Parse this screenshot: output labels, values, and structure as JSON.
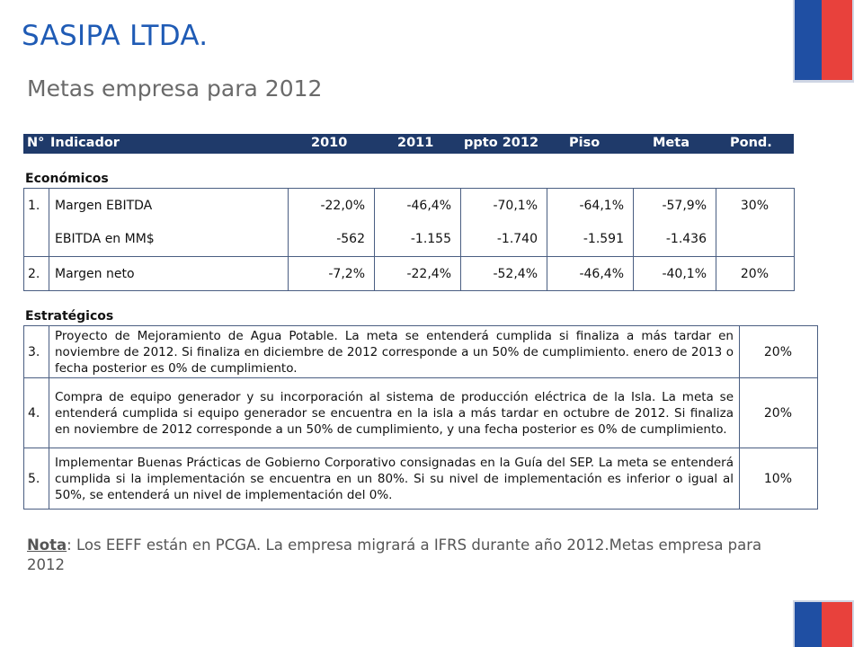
{
  "header": {
    "title": "SASIPA LTDA.",
    "subtitle": "Metas empresa para 2012"
  },
  "table_header": {
    "num": "N°",
    "indicador": "Indicador",
    "y2010": "2010",
    "y2011": "2011",
    "ppto": "ppto 2012",
    "piso": "Piso",
    "meta": "Meta",
    "pond": "Pond."
  },
  "economicos": {
    "label": "Económicos",
    "rows": [
      {
        "idx": "1.",
        "name": "Margen EBITDA",
        "v2010": "-22,0%",
        "v2011": "-46,4%",
        "ppto": "-70,1%",
        "piso": "-64,1%",
        "meta": "-57,9%",
        "pond": "30%"
      },
      {
        "idx": "",
        "name": "EBITDA en MM$",
        "v2010": "-562",
        "v2011": "-1.155",
        "ppto": "-1.740",
        "piso": "-1.591",
        "meta": "-1.436",
        "pond": ""
      },
      {
        "idx": "2.",
        "name": "Margen neto",
        "v2010": "-7,2%",
        "v2011": "-22,4%",
        "ppto": "-52,4%",
        "piso": "-46,4%",
        "meta": "-40,1%",
        "pond": "20%"
      }
    ]
  },
  "estrategicos": {
    "label": "Estratégicos",
    "rows": [
      {
        "idx": "3.",
        "desc": "Proyecto de Mejoramiento de Agua Potable. La meta se entenderá cumplida si finaliza a más tardar en noviembre de 2012. Si finaliza en diciembre de 2012 corresponde a un 50% de cumplimiento. enero de 2013 o fecha posterior es 0% de cumplimiento.",
        "pond": "20%"
      },
      {
        "idx": "4.",
        "desc": "Compra de equipo generador y su incorporación al sistema de producción eléctrica de la Isla. La meta se entenderá cumplida si equipo generador se encuentra en la isla a más tardar en octubre de 2012. Si finaliza en noviembre de 2012 corresponde a un 50% de cumplimiento, y una fecha posterior es 0% de cumplimiento.",
        "pond": "20%"
      },
      {
        "idx": "5.",
        "desc": "Implementar Buenas Prácticas de Gobierno Corporativo consignadas en la Guía del SEP. La meta se entenderá cumplida si la implementación se encuentra en un 80%. Si su nivel de implementación es inferior o igual  al 50%, se entenderá un nivel de implementación del 0%.",
        "pond": "10%"
      }
    ]
  },
  "note": {
    "label": "Nota",
    "text": ": Los EEFF están en PCGA. La empresa migrará a IFRS durante año 2012.Metas empresa para 2012"
  },
  "colors": {
    "title": "#1f5bb5",
    "header_bar": "#1f3a6a",
    "flag_blue": "#1f4fa3",
    "flag_red": "#e8413c"
  }
}
